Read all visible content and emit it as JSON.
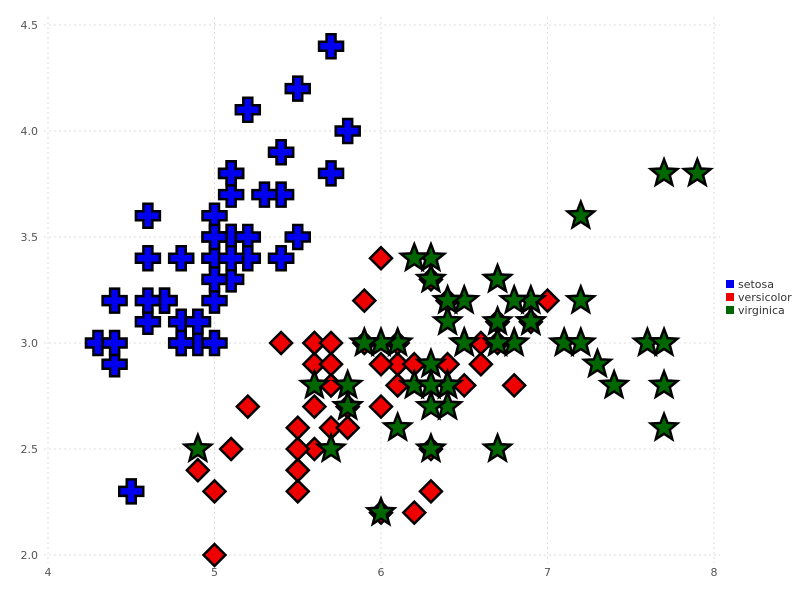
{
  "chart_data": {
    "type": "scatter",
    "title": "",
    "xlabel": "",
    "ylabel": "",
    "xlim": [
      4,
      8
    ],
    "ylim": [
      2.0,
      4.5
    ],
    "x_ticks": [
      "4",
      "5",
      "6",
      "7",
      "8"
    ],
    "y_ticks": [
      "2.0",
      "2.5",
      "3.0",
      "3.5",
      "4.0",
      "4.5"
    ],
    "grid": true,
    "legend_position": "right",
    "series": [
      {
        "name": "setosa",
        "color": "#0000ee",
        "marker": "cross",
        "points": [
          [
            5.1,
            3.5
          ],
          [
            4.9,
            3.0
          ],
          [
            4.7,
            3.2
          ],
          [
            4.6,
            3.1
          ],
          [
            5.0,
            3.6
          ],
          [
            5.4,
            3.9
          ],
          [
            4.6,
            3.4
          ],
          [
            5.0,
            3.4
          ],
          [
            4.4,
            2.9
          ],
          [
            4.9,
            3.1
          ],
          [
            5.4,
            3.7
          ],
          [
            4.8,
            3.4
          ],
          [
            4.8,
            3.0
          ],
          [
            4.3,
            3.0
          ],
          [
            5.8,
            4.0
          ],
          [
            5.7,
            4.4
          ],
          [
            5.4,
            3.9
          ],
          [
            5.1,
            3.5
          ],
          [
            5.7,
            3.8
          ],
          [
            5.1,
            3.8
          ],
          [
            5.4,
            3.4
          ],
          [
            5.1,
            3.7
          ],
          [
            4.6,
            3.6
          ],
          [
            5.1,
            3.3
          ],
          [
            4.8,
            3.4
          ],
          [
            5.0,
            3.0
          ],
          [
            5.0,
            3.4
          ],
          [
            5.2,
            3.5
          ],
          [
            5.2,
            3.4
          ],
          [
            4.7,
            3.2
          ],
          [
            4.8,
            3.1
          ],
          [
            5.4,
            3.4
          ],
          [
            5.2,
            4.1
          ],
          [
            5.5,
            4.2
          ],
          [
            4.9,
            3.1
          ],
          [
            5.0,
            3.2
          ],
          [
            5.5,
            3.5
          ],
          [
            4.9,
            3.1
          ],
          [
            4.4,
            3.0
          ],
          [
            5.1,
            3.4
          ],
          [
            5.0,
            3.5
          ],
          [
            4.5,
            2.3
          ],
          [
            4.4,
            3.2
          ],
          [
            5.0,
            3.5
          ],
          [
            5.1,
            3.8
          ],
          [
            4.8,
            3.0
          ],
          [
            5.1,
            3.8
          ],
          [
            4.6,
            3.2
          ],
          [
            5.3,
            3.7
          ],
          [
            5.0,
            3.3
          ]
        ]
      },
      {
        "name": "versicolor",
        "color": "#ee0000",
        "marker": "diamond",
        "points": [
          [
            7.0,
            3.2
          ],
          [
            6.4,
            3.2
          ],
          [
            6.9,
            3.1
          ],
          [
            5.5,
            2.3
          ],
          [
            6.5,
            2.8
          ],
          [
            5.7,
            2.8
          ],
          [
            6.3,
            3.3
          ],
          [
            4.9,
            2.4
          ],
          [
            6.6,
            2.9
          ],
          [
            5.2,
            2.7
          ],
          [
            5.0,
            2.0
          ],
          [
            5.9,
            3.0
          ],
          [
            6.0,
            2.2
          ],
          [
            6.1,
            2.9
          ],
          [
            5.6,
            2.9
          ],
          [
            6.7,
            3.1
          ],
          [
            5.6,
            3.0
          ],
          [
            5.8,
            2.7
          ],
          [
            6.2,
            2.2
          ],
          [
            5.6,
            2.5
          ],
          [
            5.9,
            3.2
          ],
          [
            6.1,
            2.8
          ],
          [
            6.3,
            2.5
          ],
          [
            6.1,
            2.8
          ],
          [
            6.4,
            2.9
          ],
          [
            6.6,
            3.0
          ],
          [
            6.8,
            2.8
          ],
          [
            6.7,
            3.0
          ],
          [
            6.0,
            2.9
          ],
          [
            5.7,
            2.6
          ],
          [
            5.5,
            2.4
          ],
          [
            5.5,
            2.4
          ],
          [
            5.8,
            2.7
          ],
          [
            6.0,
            2.7
          ],
          [
            5.4,
            3.0
          ],
          [
            6.0,
            3.4
          ],
          [
            6.7,
            3.1
          ],
          [
            6.3,
            2.3
          ],
          [
            5.6,
            3.0
          ],
          [
            5.5,
            2.5
          ],
          [
            5.5,
            2.6
          ],
          [
            6.1,
            3.0
          ],
          [
            5.8,
            2.6
          ],
          [
            5.0,
            2.3
          ],
          [
            5.6,
            2.7
          ],
          [
            5.7,
            3.0
          ],
          [
            5.7,
            2.9
          ],
          [
            6.2,
            2.9
          ],
          [
            5.1,
            2.5
          ],
          [
            5.7,
            2.8
          ]
        ]
      },
      {
        "name": "virginica",
        "color": "#006600",
        "marker": "star",
        "points": [
          [
            6.3,
            3.3
          ],
          [
            5.8,
            2.7
          ],
          [
            7.1,
            3.0
          ],
          [
            6.3,
            2.9
          ],
          [
            6.5,
            3.0
          ],
          [
            7.6,
            3.0
          ],
          [
            4.9,
            2.5
          ],
          [
            7.3,
            2.9
          ],
          [
            6.7,
            2.5
          ],
          [
            7.2,
            3.6
          ],
          [
            6.5,
            3.2
          ],
          [
            6.4,
            2.7
          ],
          [
            6.8,
            3.0
          ],
          [
            5.7,
            2.5
          ],
          [
            5.8,
            2.8
          ],
          [
            6.4,
            3.2
          ],
          [
            6.5,
            3.0
          ],
          [
            7.7,
            3.8
          ],
          [
            7.7,
            2.6
          ],
          [
            6.0,
            2.2
          ],
          [
            6.9,
            3.2
          ],
          [
            5.6,
            2.8
          ],
          [
            7.7,
            2.8
          ],
          [
            6.3,
            2.7
          ],
          [
            6.7,
            3.3
          ],
          [
            7.2,
            3.2
          ],
          [
            6.2,
            2.8
          ],
          [
            6.1,
            3.0
          ],
          [
            6.4,
            2.8
          ],
          [
            7.2,
            3.0
          ],
          [
            7.4,
            2.8
          ],
          [
            7.9,
            3.8
          ],
          [
            6.4,
            2.8
          ],
          [
            6.3,
            2.8
          ],
          [
            6.1,
            2.6
          ],
          [
            7.7,
            3.0
          ],
          [
            6.3,
            3.4
          ],
          [
            6.4,
            3.1
          ],
          [
            6.0,
            3.0
          ],
          [
            6.9,
            3.1
          ],
          [
            6.7,
            3.1
          ],
          [
            6.9,
            3.1
          ],
          [
            5.8,
            2.7
          ],
          [
            6.8,
            3.2
          ],
          [
            6.7,
            3.3
          ],
          [
            6.7,
            3.0
          ],
          [
            6.3,
            2.5
          ],
          [
            6.5,
            3.0
          ],
          [
            6.2,
            3.4
          ],
          [
            5.9,
            3.0
          ]
        ]
      }
    ]
  }
}
